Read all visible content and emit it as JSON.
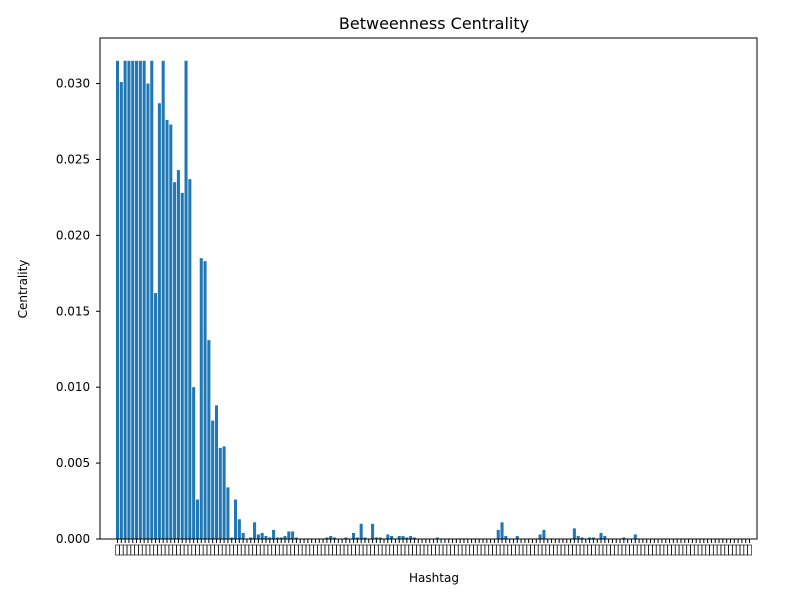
{
  "colors": {
    "bar": "#1f77b4",
    "axis": "#000000",
    "background": "#ffffff"
  },
  "chart_data": {
    "type": "bar",
    "title": "Betweenness Centrality",
    "xlabel": "Hashtag",
    "ylabel": "Centrality",
    "ylim": [
      0,
      0.033
    ],
    "yticks": [
      {
        "value": 0.0,
        "label": "0.000"
      },
      {
        "value": 0.005,
        "label": "0.005"
      },
      {
        "value": 0.01,
        "label": "0.010"
      },
      {
        "value": 0.015,
        "label": "0.015"
      },
      {
        "value": 0.02,
        "label": "0.020"
      },
      {
        "value": 0.025,
        "label": "0.025"
      },
      {
        "value": 0.03,
        "label": "0.030"
      }
    ],
    "grid": false,
    "legend": "none",
    "values": [
      0.0315,
      0.0301,
      0.0315,
      0.0315,
      0.0315,
      0.0315,
      0.0315,
      0.0315,
      0.03,
      0.0315,
      0.0162,
      0.0287,
      0.0315,
      0.0276,
      0.0273,
      0.0235,
      0.0243,
      0.0228,
      0.0315,
      0.0237,
      0.01,
      0.0026,
      0.0185,
      0.0183,
      0.0131,
      0.0078,
      0.0088,
      0.006,
      0.0061,
      0.0034,
      0.0001,
      0.0026,
      0.0013,
      0.0004,
      0.0,
      0.0001,
      0.0011,
      0.0003,
      0.0004,
      0.0002,
      0.0001,
      0.0006,
      0.0001,
      0.0001,
      0.0002,
      0.0005,
      0.0005,
      0.0001,
      0.0,
      0.0,
      0.0,
      0.0,
      0.0,
      0.0,
      0.0,
      0.0001,
      0.0002,
      0.0001,
      0.0,
      0.0,
      0.0001,
      0.0,
      0.0004,
      0.0001,
      0.001,
      0.0001,
      0.0,
      0.001,
      0.0001,
      0.0001,
      0.0,
      0.0003,
      0.0002,
      0.0,
      0.0002,
      0.0002,
      0.0001,
      0.0002,
      0.0001,
      0.0,
      0.0,
      0.0,
      0.0,
      0.0,
      0.0001,
      0.0,
      0.0,
      0.0,
      0.0,
      0.0,
      0.0,
      0.0,
      0.0,
      0.0,
      0.0,
      0.0,
      0.0,
      0.0,
      0.0,
      0.0,
      0.0006,
      0.0011,
      0.0002,
      0.0,
      0.0,
      0.0002,
      0.0,
      0.0,
      0.0,
      0.0,
      0.0,
      0.0003,
      0.0006,
      0.0,
      0.0,
      0.0,
      0.0,
      0.0,
      0.0,
      0.0,
      0.0007,
      0.0002,
      0.0001,
      0.0,
      0.0001,
      0.0001,
      0.0,
      0.0004,
      0.0002,
      0.0,
      0.0,
      0.0,
      0.0,
      0.0001,
      0.0,
      0.0,
      0.0003,
      0.0,
      0.0,
      0.0,
      0.0,
      0.0,
      0.0,
      0.0,
      0.0,
      0.0,
      0.0,
      0.0,
      0.0,
      0.0,
      0.0,
      0.0,
      0.0,
      0.0,
      0.0,
      0.0,
      0.0,
      0.0,
      0.0,
      0.0,
      0.0,
      0.0,
      0.0,
      0.0,
      0.0,
      0.0,
      0.0
    ]
  }
}
